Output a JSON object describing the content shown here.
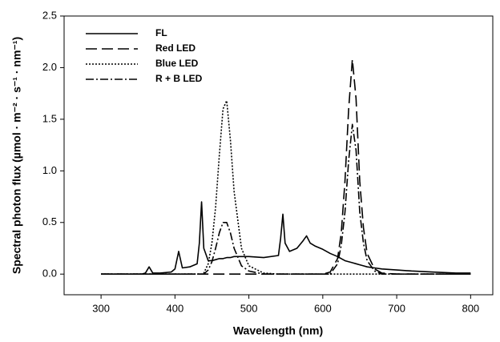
{
  "chart_data": {
    "type": "line",
    "xlabel": "Wavelength (nm)",
    "ylabel": "Spectral photon flux (µmol · m⁻² · s⁻¹ · nm⁻¹)",
    "x": [
      300,
      320,
      340,
      355,
      360,
      365,
      370,
      380,
      395,
      400,
      405,
      410,
      420,
      430,
      433,
      436,
      439,
      445,
      450,
      455,
      460,
      465,
      470,
      475,
      480,
      490,
      500,
      520,
      540,
      543,
      546,
      549,
      555,
      565,
      573,
      578,
      583,
      590,
      600,
      610,
      620,
      625,
      630,
      635,
      640,
      645,
      650,
      655,
      660,
      670,
      680,
      700,
      720,
      750,
      780,
      800
    ],
    "series": [
      {
        "name": "FL",
        "color": "#000000",
        "dash": "solid",
        "values": [
          0,
          0,
          0,
          0,
          0.01,
          0.07,
          0.01,
          0.01,
          0.02,
          0.05,
          0.22,
          0.06,
          0.07,
          0.1,
          0.3,
          0.7,
          0.25,
          0.13,
          0.13,
          0.14,
          0.15,
          0.15,
          0.16,
          0.16,
          0.17,
          0.17,
          0.17,
          0.16,
          0.18,
          0.35,
          0.58,
          0.3,
          0.22,
          0.25,
          0.32,
          0.37,
          0.3,
          0.27,
          0.24,
          0.2,
          0.17,
          0.15,
          0.13,
          0.12,
          0.11,
          0.1,
          0.09,
          0.08,
          0.07,
          0.06,
          0.05,
          0.04,
          0.03,
          0.02,
          0.01,
          0.01
        ]
      },
      {
        "name": "Red LED",
        "color": "#000000",
        "dash": "dashed",
        "values": [
          0,
          0,
          0,
          0,
          0,
          0,
          0,
          0,
          0,
          0,
          0,
          0,
          0,
          0,
          0,
          0,
          0,
          0,
          0,
          0,
          0,
          0,
          0,
          0,
          0,
          0,
          0,
          0,
          0,
          0,
          0,
          0,
          0,
          0,
          0,
          0,
          0,
          0,
          0,
          0.02,
          0.15,
          0.4,
          0.9,
          1.6,
          2.08,
          1.7,
          0.9,
          0.45,
          0.2,
          0.05,
          0.01,
          0,
          0,
          0,
          0,
          0
        ]
      },
      {
        "name": "Blue LED",
        "color": "#000000",
        "dash": "dotted",
        "values": [
          0,
          0,
          0,
          0,
          0,
          0,
          0,
          0,
          0,
          0,
          0,
          0,
          0,
          0,
          0,
          0,
          0.01,
          0.1,
          0.3,
          0.65,
          1.15,
          1.6,
          1.68,
          1.3,
          0.8,
          0.25,
          0.08,
          0.01,
          0,
          0,
          0,
          0,
          0,
          0,
          0,
          0,
          0,
          0,
          0,
          0,
          0,
          0,
          0,
          0,
          0,
          0,
          0,
          0,
          0,
          0,
          0,
          0,
          0,
          0,
          0,
          0
        ]
      },
      {
        "name": "R + B LED",
        "color": "#000000",
        "dash": "dashdot",
        "values": [
          0,
          0,
          0,
          0,
          0,
          0,
          0,
          0,
          0,
          0,
          0,
          0,
          0,
          0,
          0,
          0,
          0,
          0.04,
          0.12,
          0.25,
          0.4,
          0.5,
          0.5,
          0.4,
          0.25,
          0.08,
          0.03,
          0,
          0,
          0,
          0,
          0,
          0,
          0,
          0,
          0,
          0,
          0,
          0,
          0,
          0.1,
          0.28,
          0.6,
          1.1,
          1.45,
          1.2,
          0.6,
          0.3,
          0.13,
          0.03,
          0,
          0,
          0,
          0,
          0,
          0
        ]
      }
    ],
    "xlim": [
      250,
      830
    ],
    "xticks": [
      300,
      400,
      500,
      600,
      700,
      800
    ],
    "ylim": [
      -0.2,
      2.5
    ],
    "yticks": [
      {
        "value": 0,
        "label": "0.0"
      },
      {
        "value": 0.5,
        "label": "0.5"
      },
      {
        "value": 1,
        "label": "1.0"
      },
      {
        "value": 1.5,
        "label": "1.5"
      },
      {
        "value": 2,
        "label": "2.0"
      },
      {
        "value": 2.5,
        "label": "2.5"
      }
    ],
    "legend": "upper-left",
    "grid": false
  }
}
